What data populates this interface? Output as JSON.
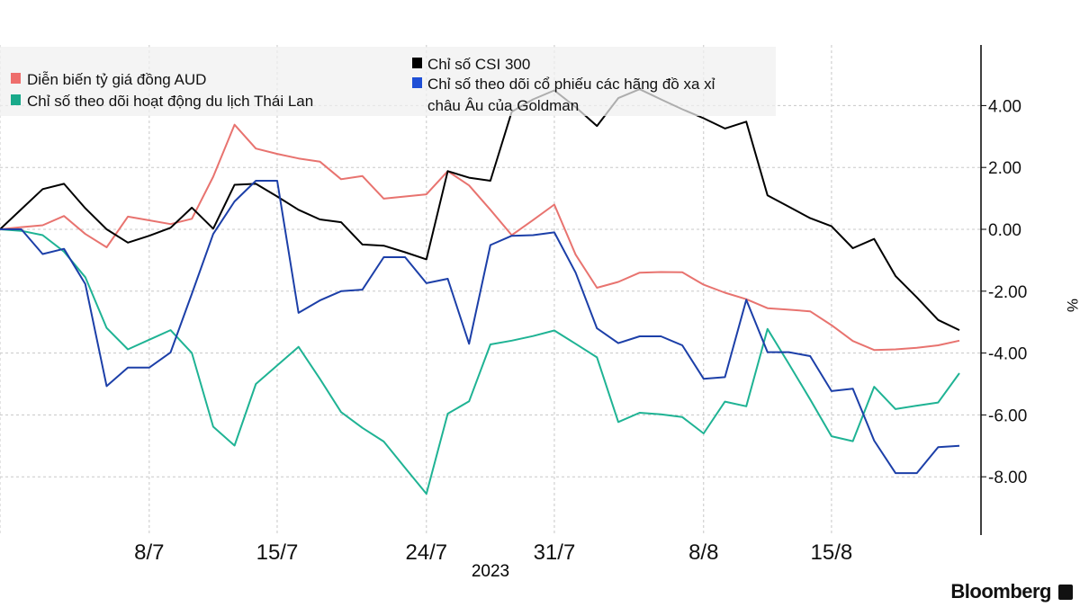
{
  "chart_data": {
    "type": "line",
    "xlabel": "2023",
    "ylabel": "%",
    "ylim": [
      -9.8,
      5.8
    ],
    "y_ticks": [
      "4.00",
      "2.00",
      "0.00",
      "-2.00",
      "-4.00",
      "-6.00",
      "-8.00"
    ],
    "y_tick_values": [
      4,
      2,
      0,
      -2,
      -4,
      -6,
      -8
    ],
    "x_ticks": [
      {
        "label": "8/7",
        "at": 7
      },
      {
        "label": "15/7",
        "at": 13
      },
      {
        "label": "24/7",
        "at": 20
      },
      {
        "label": "31/7",
        "at": 26
      },
      {
        "label": "8/8",
        "at": 33
      },
      {
        "label": "15/8",
        "at": 39
      }
    ],
    "grid": true,
    "legend_placement": "top",
    "series": [
      {
        "name": "Diễn biến tỷ giá đồng AUD",
        "color": "#e8736f",
        "values": [
          0,
          0.07,
          0.13,
          0.43,
          -0.15,
          -0.58,
          0.41,
          0.29,
          0.17,
          0.34,
          1.7,
          3.38,
          2.61,
          2.44,
          2.29,
          2.19,
          1.62,
          1.72,
          0.99,
          1.06,
          1.13,
          1.88,
          1.42,
          0.63,
          -0.19,
          0.3,
          0.8,
          -0.82,
          -1.89,
          -1.7,
          -1.4,
          -1.38,
          -1.39,
          -1.79,
          -2.05,
          -2.26,
          -2.55,
          -2.6,
          -2.65,
          -3.1,
          -3.61,
          -3.9,
          -3.88,
          -3.83,
          -3.75,
          -3.6
        ]
      },
      {
        "name": "Chỉ số theo dõi hoạt động du lịch Thái Lan",
        "color": "#1fb394",
        "values": [
          0,
          -0.05,
          -0.19,
          -0.72,
          -1.55,
          -3.19,
          -3.88,
          -3.57,
          -3.26,
          -4.0,
          -6.38,
          -6.99,
          -5.0,
          -4.4,
          -3.8,
          -4.83,
          -5.91,
          -6.42,
          -6.86,
          -7.71,
          -8.55,
          -5.96,
          -5.56,
          -3.72,
          -3.6,
          -3.45,
          -3.27,
          -3.7,
          -4.14,
          -6.23,
          -5.93,
          -5.98,
          -6.07,
          -6.6,
          -5.57,
          -5.72,
          -3.22,
          -4.35,
          -5.5,
          -6.69,
          -6.85,
          -5.09,
          -5.81,
          -5.7,
          -5.6,
          -4.65
        ]
      },
      {
        "name": "Chỉ số CSI 300",
        "color": "#000000",
        "values": [
          0,
          0.65,
          1.3,
          1.47,
          0.68,
          0,
          -0.43,
          -0.21,
          0.05,
          0.7,
          0.02,
          1.44,
          1.47,
          1.06,
          0.63,
          0.32,
          0.23,
          -0.49,
          -0.53,
          -0.74,
          -0.97,
          1.88,
          1.67,
          1.57,
          3.8,
          4.2,
          4.49,
          3.95,
          3.34,
          4.24,
          4.53,
          4.2,
          3.88,
          3.59,
          3.26,
          3.48,
          1.1,
          0.73,
          0.36,
          0.1,
          -0.61,
          -0.31,
          -1.51,
          -2.2,
          -2.93,
          -3.26
        ]
      },
      {
        "name": "Chỉ số theo dõi cổ phiếu các hãng đồ xa xỉ châu Âu của Goldman",
        "name_line1": "Chỉ số theo dõi cổ phiếu các hãng đồ xa xỉ",
        "name_line2": "châu Âu của Goldman",
        "color": "#1c3fa8",
        "values": [
          0,
          0,
          -0.8,
          -0.63,
          -1.77,
          -5.07,
          -4.47,
          -4.47,
          -3.98,
          -2.08,
          -0.15,
          0.9,
          1.57,
          1.57,
          -2.7,
          -2.3,
          -2.0,
          -1.95,
          -0.9,
          -0.9,
          -1.74,
          -1.6,
          -3.7,
          -0.51,
          -0.21,
          -0.19,
          -0.1,
          -1.4,
          -3.2,
          -3.68,
          -3.46,
          -3.46,
          -3.75,
          -4.83,
          -4.78,
          -2.28,
          -3.97,
          -3.97,
          -4.1,
          -5.23,
          -5.15,
          -6.83,
          -7.88,
          -7.88,
          -7.04,
          -7.0
        ]
      }
    ]
  },
  "legend_colors": {
    "AUD": "#ee6e6c",
    "Thai": "#19a98a",
    "CSI": "#000000",
    "Goldman": "#1f4fd6"
  },
  "branding": {
    "logo_text": "Bloomberg"
  }
}
